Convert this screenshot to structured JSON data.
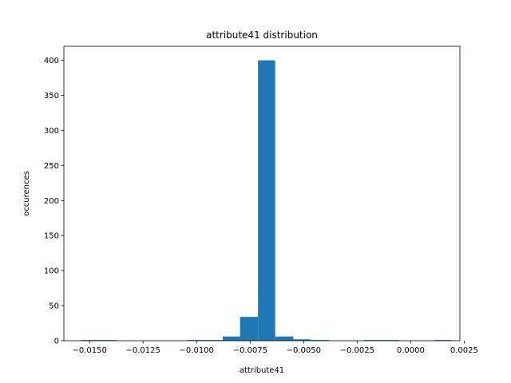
{
  "chart_data": {
    "type": "bar",
    "title": "attribute41 distribution",
    "xlabel": "attribute41",
    "ylabel": "occurences",
    "xlim": [
      -0.0162,
      0.0023
    ],
    "ylim": [
      0,
      420
    ],
    "grid": false,
    "bar_color": "#1f77b4",
    "bin_edges": [
      -0.01538,
      -0.01373,
      -0.01208,
      -0.01043,
      -0.00878,
      -0.00797,
      -0.00713,
      -0.00633,
      -0.00548,
      -0.00468,
      -0.00383,
      -0.00218,
      -0.00053,
      0.00112,
      0.00192
    ],
    "counts": [
      1,
      0,
      0,
      1,
      6,
      34,
      400,
      6,
      2,
      1,
      0,
      1,
      0,
      1
    ],
    "x_ticks": [
      -0.015,
      -0.0125,
      -0.01,
      -0.0075,
      -0.005,
      -0.0025,
      0,
      0.0025
    ],
    "x_tick_labels": [
      "−0.0150",
      "−0.0125",
      "−0.0100",
      "−0.0075",
      "−0.0050",
      "−0.0025",
      "0.0000",
      "0.0025"
    ],
    "y_ticks": [
      0,
      50,
      100,
      150,
      200,
      250,
      300,
      350,
      400
    ],
    "y_tick_labels": [
      "0",
      "50",
      "100",
      "150",
      "200",
      "250",
      "300",
      "350",
      "400"
    ]
  }
}
